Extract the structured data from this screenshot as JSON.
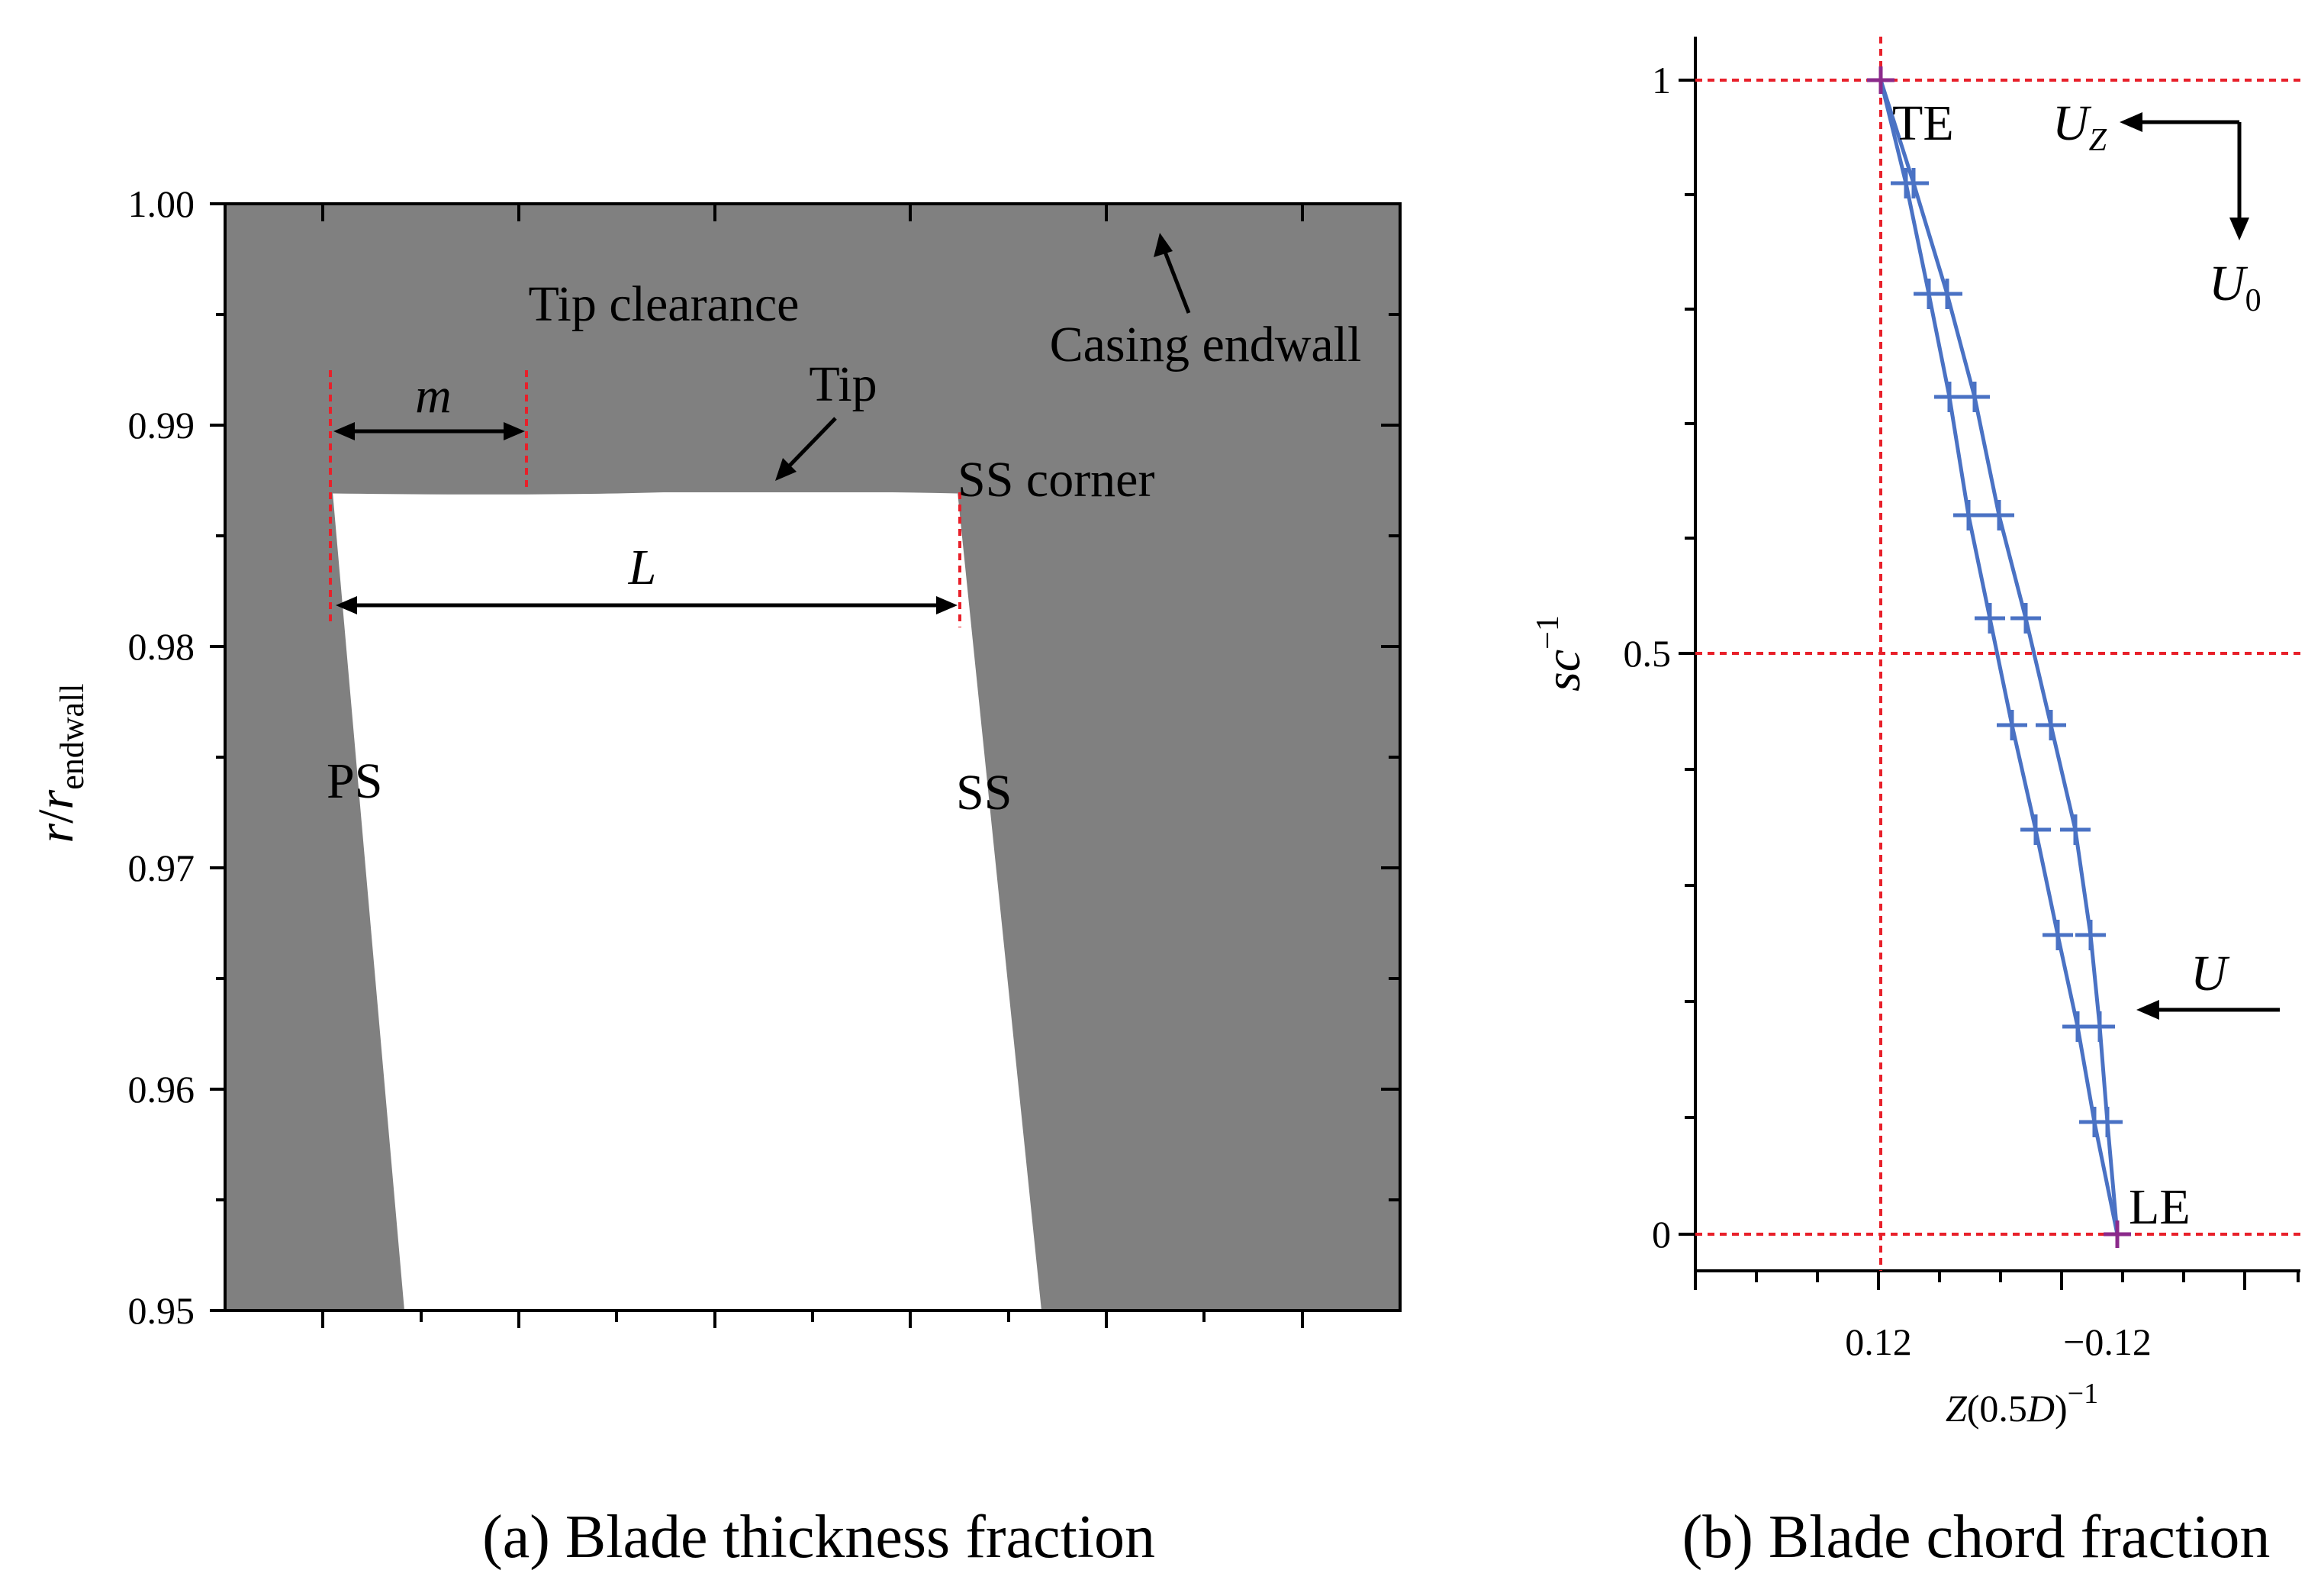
{
  "panel_a": {
    "caption": "(a) Blade thickness fraction",
    "y_axis": {
      "label_main": "r",
      "label_slash": "/",
      "label_r": "r",
      "label_sub": "endwall",
      "ticks": [
        "1.00",
        "0.99",
        "0.98",
        "0.97",
        "0.96",
        "0.95"
      ]
    },
    "labels": {
      "tip_clearance": "Tip clearance",
      "casing_endwall": "Casing endwall",
      "tip": "Tip",
      "ss_corner": "SS corner",
      "m": "m",
      "L": "L",
      "ps": "PS",
      "ss": "SS"
    },
    "colors": {
      "fill": "#808080",
      "blade": "#ffffff",
      "guide": "#e8202a"
    }
  },
  "panel_b": {
    "caption": "(b) Blade chord fraction",
    "y_axis": {
      "label_s": "sc",
      "label_sup": "−1",
      "ticks": [
        "1",
        "0.5",
        "0"
      ]
    },
    "x_axis": {
      "label_main": "Z",
      "label_paren": "(0.5",
      "label_D": "D",
      "label_close": ")",
      "label_sup": "−1",
      "ticks": [
        "0.12",
        "−0.12"
      ]
    },
    "labels": {
      "te": "TE",
      "le": "LE",
      "uz": "U",
      "uz_sub": "Z",
      "u0": "U",
      "u0_sub": "0",
      "u": "U"
    },
    "colors": {
      "profile": "#4a72c4",
      "guide": "#e8202a",
      "endpoint": "#8b2a8b"
    }
  }
}
